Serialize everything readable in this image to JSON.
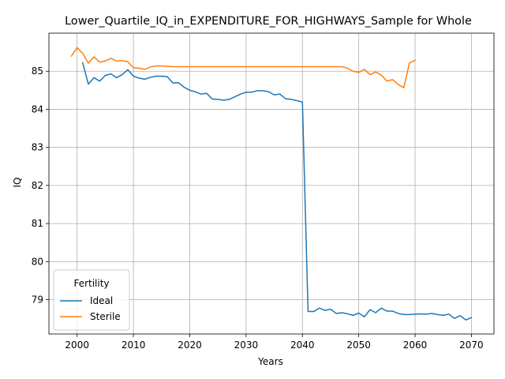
{
  "chart_data": {
    "type": "line",
    "title": "Lower_Quartile_IQ_in_EXPENDITURE_FOR_HIGHWAYS_Sample for Whole",
    "xlabel": "Years",
    "ylabel": "IQ",
    "xlim": [
      1995,
      2074
    ],
    "ylim": [
      78.1,
      86.0
    ],
    "xticks": [
      2000,
      2010,
      2020,
      2030,
      2040,
      2050,
      2060,
      2070
    ],
    "yticks": [
      79,
      80,
      81,
      82,
      83,
      84,
      85
    ],
    "grid": true,
    "legend": {
      "title": "Fertility",
      "placement": "lower-left"
    },
    "series": [
      {
        "name": "Ideal",
        "color": "#1f77b4",
        "x": [
          2001,
          2002,
          2003,
          2004,
          2005,
          2006,
          2007,
          2008,
          2009,
          2010,
          2011,
          2012,
          2013,
          2014,
          2015,
          2016,
          2017,
          2018,
          2019,
          2020,
          2021,
          2022,
          2023,
          2024,
          2025,
          2026,
          2027,
          2028,
          2029,
          2030,
          2031,
          2032,
          2033,
          2034,
          2035,
          2036,
          2037,
          2038,
          2039,
          2040,
          2041,
          2042,
          2043,
          2044,
          2045,
          2046,
          2047,
          2048,
          2049,
          2050,
          2051,
          2052,
          2053,
          2054,
          2055,
          2056,
          2057,
          2058,
          2059,
          2060,
          2061,
          2062,
          2063,
          2064,
          2065,
          2066,
          2067,
          2068,
          2069,
          2070
        ],
        "y": [
          85.22,
          84.66,
          84.83,
          84.74,
          84.89,
          84.93,
          84.83,
          84.91,
          85.04,
          84.87,
          84.82,
          84.79,
          84.84,
          84.87,
          84.87,
          84.86,
          84.69,
          84.7,
          84.58,
          84.5,
          84.46,
          84.4,
          84.42,
          84.27,
          84.26,
          84.24,
          84.26,
          84.33,
          84.4,
          84.45,
          84.45,
          84.49,
          84.49,
          84.46,
          84.38,
          84.4,
          84.28,
          84.26,
          84.23,
          84.19,
          78.69,
          78.69,
          78.78,
          78.72,
          78.75,
          78.64,
          78.66,
          78.63,
          78.59,
          78.65,
          78.55,
          78.74,
          78.66,
          78.78,
          78.7,
          78.7,
          78.64,
          78.61,
          78.61,
          78.62,
          78.63,
          78.62,
          78.64,
          78.61,
          78.59,
          78.62,
          78.51,
          78.58,
          78.47,
          78.53
        ]
      },
      {
        "name": "Sterile",
        "color": "#ff7f0e",
        "x": [
          1999,
          2000,
          2001,
          2002,
          2003,
          2004,
          2005,
          2006,
          2007,
          2008,
          2009,
          2010,
          2011,
          2012,
          2013,
          2014,
          2015,
          2016,
          2017,
          2018,
          2019,
          2020,
          2021,
          2022,
          2023,
          2024,
          2025,
          2026,
          2027,
          2028,
          2029,
          2030,
          2031,
          2032,
          2033,
          2034,
          2035,
          2036,
          2037,
          2038,
          2039,
          2040,
          2041,
          2042,
          2043,
          2044,
          2045,
          2046,
          2047,
          2048,
          2049,
          2050,
          2051,
          2052,
          2053,
          2054,
          2055,
          2056,
          2057,
          2058,
          2059,
          2060
        ],
        "y": [
          85.4,
          85.62,
          85.47,
          85.21,
          85.38,
          85.24,
          85.27,
          85.34,
          85.27,
          85.28,
          85.25,
          85.09,
          85.08,
          85.05,
          85.11,
          85.14,
          85.14,
          85.13,
          85.12,
          85.12,
          85.12,
          85.12,
          85.12,
          85.12,
          85.12,
          85.12,
          85.12,
          85.12,
          85.12,
          85.12,
          85.12,
          85.12,
          85.12,
          85.12,
          85.12,
          85.12,
          85.12,
          85.12,
          85.12,
          85.12,
          85.12,
          85.12,
          85.12,
          85.12,
          85.12,
          85.12,
          85.12,
          85.12,
          85.12,
          85.08,
          85.0,
          84.97,
          85.05,
          84.91,
          84.98,
          84.9,
          84.74,
          84.78,
          84.65,
          84.57,
          85.22,
          85.29
        ]
      }
    ]
  }
}
